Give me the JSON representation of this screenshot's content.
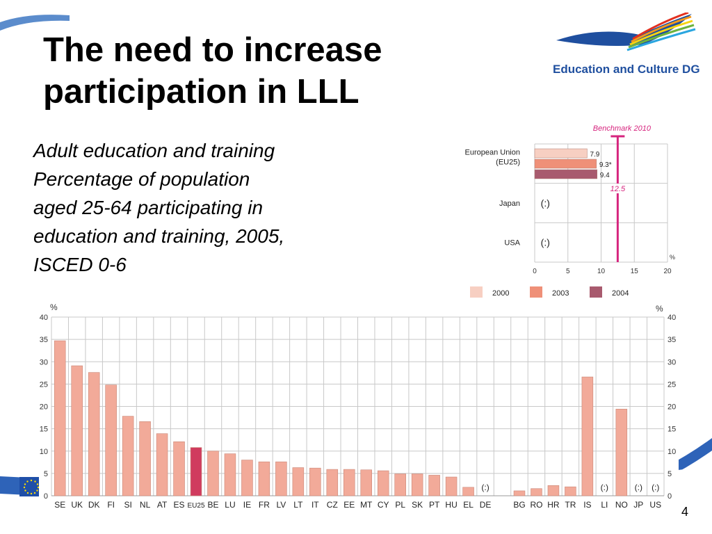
{
  "slide": {
    "title_line1": "The need to increase",
    "title_line2": "participation in LLL",
    "subtitle_lines": [
      "Adult education and training",
      "Percentage of population",
      "aged 25-64 participating in",
      "education and training, 2005,",
      "ISCED 0-6"
    ],
    "logo_text": "Education and Culture DG",
    "page_number": "4"
  },
  "colors": {
    "bar_fill": "#f2aa99",
    "bar_stroke": "#c98676",
    "eu25_fill": "#d03b5e",
    "y2000": "#f7cfc2",
    "y2003": "#ef9078",
    "y2004": "#a85a6e",
    "benchmark": "#d6247e",
    "grid": "#c8c8c8",
    "logo_blue": "#1f4f9f"
  },
  "chart_data": [
    {
      "type": "bar",
      "orientation": "horizontal",
      "categories": [
        "European Union (EU25)",
        "Japan",
        "USA"
      ],
      "category_lines": [
        [
          "European Union",
          "(EU25)"
        ],
        [
          "Japan"
        ],
        [
          "USA"
        ]
      ],
      "series": [
        {
          "name": "2000",
          "values": [
            7.9,
            null,
            null
          ],
          "labels": [
            "7.9",
            "",
            ""
          ]
        },
        {
          "name": "2003",
          "values": [
            9.3,
            null,
            null
          ],
          "labels": [
            "9.3*",
            "",
            ""
          ]
        },
        {
          "name": "2004",
          "values": [
            9.4,
            null,
            null
          ],
          "labels": [
            "9.4",
            "",
            ""
          ]
        }
      ],
      "missing_label": "(:)",
      "missing_categories": [
        "Japan",
        "USA"
      ],
      "benchmark": {
        "label": "Benchmark 2010",
        "value": 12.5,
        "value_label": "12.5"
      },
      "xlim": [
        0,
        20
      ],
      "xticks": [
        "0",
        "5",
        "10",
        "15",
        "20"
      ],
      "unit_label": "%",
      "legend": [
        "2000",
        "2003",
        "2004"
      ],
      "legend_position": "bottom"
    },
    {
      "type": "bar",
      "categories": [
        "SE",
        "UK",
        "DK",
        "FI",
        "SI",
        "NL",
        "AT",
        "ES",
        "EU25",
        "BE",
        "LU",
        "IE",
        "FR",
        "LV",
        "LT",
        "IT",
        "CZ",
        "EE",
        "MT",
        "CY",
        "PL",
        "SK",
        "PT",
        "HU",
        "EL",
        "DE",
        "",
        "BG",
        "RO",
        "HR",
        "TR",
        "IS",
        "LI",
        "NO",
        "JP",
        "US"
      ],
      "values": [
        34.7,
        29.1,
        27.6,
        24.8,
        17.8,
        16.6,
        13.9,
        12.1,
        10.8,
        10.0,
        9.4,
        8.0,
        7.6,
        7.6,
        6.3,
        6.2,
        5.9,
        5.9,
        5.8,
        5.6,
        4.9,
        4.9,
        4.6,
        4.2,
        1.9,
        null,
        null,
        1.1,
        1.6,
        2.3,
        2.0,
        26.6,
        null,
        19.4,
        null,
        null
      ],
      "highlight": "EU25",
      "missing_label": "(:)",
      "missing_categories": [
        "DE",
        "LI",
        "JP",
        "US"
      ],
      "ylim": [
        0,
        40
      ],
      "yticks": [
        "0",
        "5",
        "10",
        "15",
        "20",
        "25",
        "30",
        "35",
        "40"
      ],
      "unit_label": "%"
    }
  ]
}
